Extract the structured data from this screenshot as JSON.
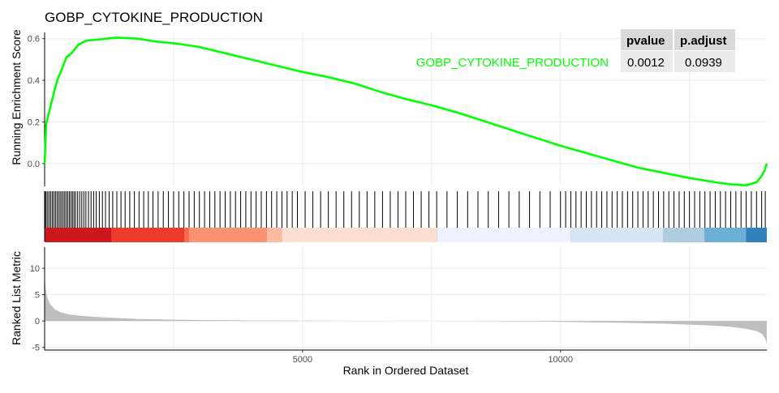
{
  "chart_data": {
    "type": "line",
    "title": "GOBP_CYTOKINE_PRODUCTION",
    "xlabel": "Rank in Ordered Dataset",
    "xlim": [
      0,
      14000
    ],
    "x_ticks": [
      5000,
      10000
    ],
    "x_tick_labels": [
      "5000",
      "10000"
    ],
    "grid": true,
    "running_es": {
      "ylabel": "Running Enrichment Score",
      "ylim": [
        -0.11,
        0.63
      ],
      "y_ticks": [
        0.0,
        0.2,
        0.4,
        0.6
      ],
      "y_tick_labels": [
        "0.0",
        "0.2",
        "0.4",
        "0.6"
      ],
      "series": [
        {
          "name": "GOBP_CYTOKINE_PRODUCTION",
          "color": "#00ff00",
          "x": [
            0,
            30,
            80,
            140,
            200,
            260,
            330,
            420,
            520,
            650,
            800,
            1000,
            1200,
            1400,
            1800,
            2200,
            2600,
            3000,
            3500,
            4000,
            4500,
            5000,
            5500,
            6000,
            6500,
            7000,
            7500,
            8000,
            8500,
            9000,
            9500,
            10000,
            10500,
            11000,
            11500,
            12000,
            12500,
            13000,
            13300,
            13600,
            13800,
            13900,
            13960,
            14000
          ],
          "y": [
            0.0,
            0.19,
            0.24,
            0.3,
            0.36,
            0.41,
            0.45,
            0.51,
            0.53,
            0.57,
            0.59,
            0.595,
            0.6,
            0.605,
            0.6,
            0.585,
            0.575,
            0.56,
            0.53,
            0.5,
            0.47,
            0.44,
            0.415,
            0.385,
            0.345,
            0.31,
            0.28,
            0.245,
            0.205,
            0.165,
            0.125,
            0.085,
            0.05,
            0.015,
            -0.02,
            -0.045,
            -0.07,
            -0.09,
            -0.1,
            -0.105,
            -0.09,
            -0.06,
            -0.03,
            0.0
          ]
        }
      ]
    },
    "hits": {
      "positions": [
        10,
        30,
        60,
        90,
        120,
        150,
        180,
        210,
        240,
        270,
        300,
        330,
        360,
        390,
        420,
        450,
        480,
        510,
        540,
        570,
        600,
        640,
        680,
        720,
        760,
        800,
        850,
        900,
        950,
        1000,
        1060,
        1120,
        1180,
        1250,
        1320,
        1400,
        1480,
        1560,
        1650,
        1740,
        1830,
        1920,
        2010,
        2100,
        2200,
        2300,
        2400,
        2500,
        2600,
        2700,
        2800,
        2900,
        3000,
        3100,
        3200,
        3300,
        3400,
        3500,
        3600,
        3700,
        3800,
        3900,
        4000,
        4100,
        4200,
        4300,
        4400,
        4500,
        4600,
        4700,
        4800,
        4900,
        5050,
        5200,
        5350,
        5500,
        5650,
        5800,
        5950,
        6100,
        6250,
        6400,
        6550,
        6700,
        6850,
        7000,
        7150,
        7300,
        7450,
        7600,
        7800,
        8000,
        8200,
        8400,
        8600,
        8800,
        9000,
        9200,
        9400,
        9600,
        9800,
        10000,
        10100,
        10200,
        10300,
        10400,
        10500,
        10600,
        10700,
        10800,
        10900,
        11000,
        11100,
        11200,
        11300,
        11400,
        11500,
        11600,
        11700,
        11800,
        11900,
        12000,
        12100,
        12200,
        12300,
        12400,
        12500,
        12600,
        12700,
        12800,
        12900,
        13000,
        13100,
        13200,
        13300,
        13400,
        13500,
        13600,
        13700,
        13800,
        13900,
        13970
      ],
      "band_colors": [
        "#cb181d",
        "#ef3b2c",
        "#fb6a4a",
        "#fc9272",
        "#fcbba1",
        "#fee0d2",
        "#eff3ff",
        "#d6e5f4",
        "#aecde1",
        "#6baed6",
        "#3182bd"
      ],
      "band_edges": [
        0,
        1300,
        2700,
        2800,
        4300,
        4600,
        7600,
        10200,
        12000,
        12800,
        13600,
        14000
      ]
    },
    "ranked_metric": {
      "ylabel": "Ranked List Metric",
      "ylim": [
        -5.5,
        14
      ],
      "y_ticks": [
        -5,
        0,
        5,
        10
      ],
      "y_tick_labels": [
        "-5",
        "0",
        "5",
        "10"
      ],
      "color": "#bebebe",
      "x": [
        0,
        20,
        50,
        100,
        200,
        300,
        500,
        800,
        1200,
        1800,
        2600,
        4000,
        6000,
        8000,
        8800,
        9600,
        10000,
        11000,
        12000,
        12800,
        13300,
        13600,
        13800,
        13900,
        13950,
        13980,
        14000
      ],
      "y": [
        8.2,
        6.0,
        4.5,
        3.3,
        2.2,
        1.7,
        1.2,
        0.9,
        0.65,
        0.4,
        0.25,
        0.1,
        0.03,
        0.0,
        -0.05,
        -0.1,
        -0.15,
        -0.3,
        -0.5,
        -0.8,
        -1.1,
        -1.5,
        -1.9,
        -2.4,
        -3.0,
        -3.6,
        -4.4
      ]
    },
    "legend_table": {
      "headers": [
        "pvalue",
        "p.adjust"
      ],
      "row_label": "GOBP_CYTOKINE_PRODUCTION",
      "values": [
        "0.0012",
        "0.0939"
      ],
      "placement": "top-right"
    }
  }
}
